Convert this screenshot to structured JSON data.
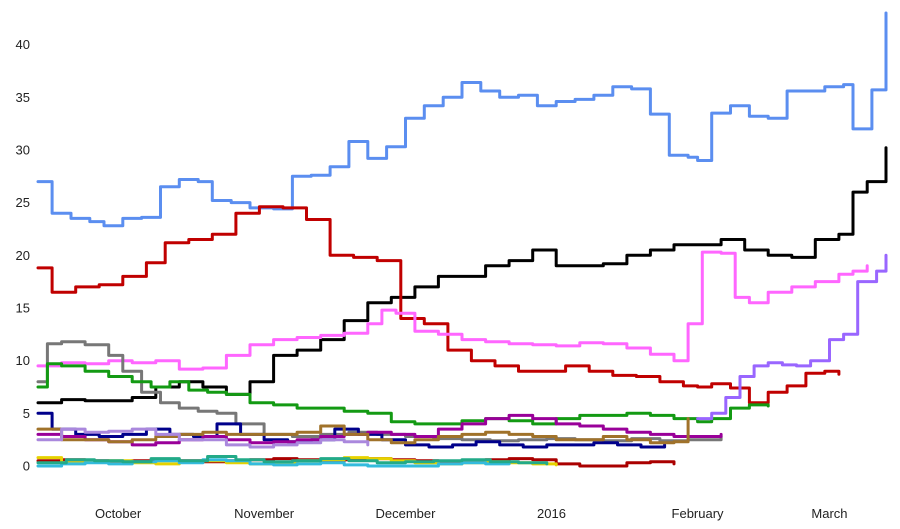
{
  "chart_data": {
    "type": "line",
    "title": "",
    "xlabel": "",
    "ylabel": "",
    "ylim": [
      0,
      43
    ],
    "yticks": [
      0,
      5,
      10,
      15,
      20,
      25,
      30,
      35,
      40
    ],
    "x_labels": [
      "October",
      "November",
      "December",
      "2016",
      "February",
      "March"
    ],
    "x_label_days": [
      17,
      48,
      78,
      109,
      140,
      168
    ],
    "x_range": [
      0,
      180
    ],
    "grid": false,
    "legend": "none",
    "series": [
      {
        "name": "blue",
        "color": "#5b8ef0",
        "x": [
          0,
          3,
          7,
          11,
          14,
          18,
          22,
          26,
          30,
          34,
          37,
          41,
          45,
          50,
          54,
          58,
          62,
          66,
          70,
          74,
          78,
          82,
          86,
          90,
          94,
          98,
          102,
          106,
          110,
          114,
          118,
          122,
          126,
          130,
          134,
          138,
          140,
          143,
          147,
          151,
          155,
          159,
          163,
          167,
          171,
          173,
          177,
          180,
          182
        ],
        "values": [
          27,
          24,
          23.5,
          23.2,
          22.8,
          23.5,
          23.6,
          26.5,
          27.2,
          27,
          25.2,
          25,
          24.5,
          24.4,
          27.5,
          27.6,
          28.4,
          30.8,
          29.2,
          30.3,
          33,
          34.2,
          35,
          36.4,
          35.6,
          35,
          35.2,
          34.2,
          34.6,
          34.8,
          35.2,
          36,
          35.8,
          33.4,
          29.5,
          29.3,
          29,
          33.5,
          34.2,
          33.2,
          33,
          35.6,
          35.6,
          36,
          36.2,
          32,
          35.7,
          41.5,
          43
        ]
      },
      {
        "name": "black",
        "color": "#000000",
        "x": [
          0,
          5,
          10,
          15,
          20,
          25,
          30,
          35,
          40,
          45,
          50,
          55,
          60,
          65,
          70,
          75,
          80,
          85,
          90,
          95,
          100,
          105,
          110,
          115,
          120,
          125,
          130,
          135,
          140,
          143,
          145,
          150,
          155,
          160,
          165,
          170,
          173,
          176,
          180,
          182
        ],
        "values": [
          6,
          6.3,
          6.2,
          6.2,
          6.5,
          7.5,
          8,
          7.5,
          6.8,
          8,
          10.5,
          11,
          12,
          13.8,
          15.5,
          16,
          17,
          18,
          18,
          19,
          19.5,
          20.5,
          19,
          19,
          19.2,
          20,
          20.5,
          21,
          21,
          21,
          21.5,
          20.5,
          20,
          19.8,
          21.5,
          22,
          26,
          27,
          29,
          30.2
        ]
      },
      {
        "name": "red",
        "color": "#c00000",
        "x": [
          0,
          3,
          8,
          13,
          18,
          23,
          27,
          32,
          37,
          42,
          47,
          52,
          57,
          62,
          67,
          72,
          77,
          82,
          87,
          92,
          97,
          102,
          107,
          112,
          117,
          122,
          127,
          132,
          137,
          140,
          143,
          147,
          151,
          155,
          159,
          163,
          167,
          170
        ],
        "values": [
          18.8,
          16.5,
          17,
          17.2,
          18,
          19.3,
          21.2,
          21.5,
          22,
          24,
          24.6,
          24.5,
          23.4,
          20,
          19.8,
          19.5,
          14,
          13.5,
          11,
          10,
          9.5,
          9,
          9,
          9.5,
          9,
          8.6,
          8.5,
          8,
          7.6,
          7.5,
          7.8,
          7.4,
          6,
          7,
          7.6,
          8.8,
          9,
          8.7
        ]
      },
      {
        "name": "pink",
        "color": "#ff66ff",
        "x": [
          0,
          5,
          10,
          15,
          20,
          25,
          30,
          35,
          40,
          45,
          50,
          55,
          60,
          65,
          70,
          73,
          76,
          80,
          85,
          90,
          95,
          100,
          105,
          110,
          115,
          120,
          125,
          130,
          135,
          138,
          141,
          145,
          148,
          151,
          155,
          160,
          165,
          170,
          173,
          176
        ],
        "values": [
          9.5,
          9.8,
          9.7,
          10,
          9.8,
          10,
          9.2,
          9.3,
          10.5,
          11.5,
          12,
          12.2,
          12.4,
          12.6,
          13.5,
          14.8,
          14.5,
          12.8,
          12.5,
          12,
          11.8,
          11.6,
          11.5,
          11.4,
          11.7,
          11.6,
          11.2,
          10.6,
          10,
          13.5,
          20.3,
          20.2,
          16,
          15.5,
          16.5,
          17,
          17.5,
          18.2,
          18.5,
          19
        ]
      },
      {
        "name": "gray",
        "color": "#777777",
        "x": [
          0,
          2,
          5,
          10,
          15,
          18,
          22,
          26,
          30,
          34,
          38,
          42,
          48,
          54,
          60,
          66,
          72,
          78,
          84,
          90,
          96,
          102,
          108,
          114,
          120,
          126,
          132,
          138,
          145
        ],
        "values": [
          8,
          11.6,
          11.8,
          11.5,
          10.5,
          9,
          7,
          6,
          5.5,
          5.2,
          5,
          4,
          3,
          2.8,
          3,
          3.2,
          3,
          2.8,
          2.6,
          2.5,
          2.4,
          2.5,
          2.6,
          2.5,
          2.4,
          2.6,
          2.4,
          2.5,
          2.8
        ]
      },
      {
        "name": "green",
        "color": "#139a13",
        "x": [
          0,
          2,
          5,
          10,
          15,
          20,
          24,
          28,
          32,
          36,
          40,
          45,
          50,
          55,
          60,
          65,
          70,
          75,
          80,
          85,
          90,
          95,
          100,
          105,
          110,
          115,
          120,
          125,
          130,
          135,
          140,
          143,
          147,
          151,
          155
        ],
        "values": [
          7.5,
          9.7,
          9.5,
          9,
          8.5,
          8,
          7.5,
          8,
          7.2,
          7,
          6.8,
          6,
          5.8,
          5.5,
          5.5,
          5.2,
          5,
          4.2,
          4,
          4,
          4.3,
          4.5,
          4.3,
          4,
          4.5,
          4.8,
          4.8,
          5,
          4.8,
          4.5,
          4.2,
          4.5,
          5.5,
          5.8,
          5.7
        ]
      },
      {
        "name": "purple",
        "color": "#9966ff",
        "x": [
          140,
          143,
          146,
          149,
          152,
          155,
          158,
          161,
          164,
          168,
          171,
          174,
          178,
          180,
          182
        ],
        "values": [
          4.5,
          5,
          6.5,
          8.5,
          9.5,
          9.8,
          9.6,
          9.5,
          10,
          12,
          12.5,
          17.5,
          18.5,
          20,
          19.2
        ]
      },
      {
        "name": "navy",
        "color": "#00008b",
        "x": [
          0,
          3,
          8,
          13,
          18,
          23,
          28,
          33,
          38,
          43,
          48,
          53,
          58,
          63,
          68,
          73,
          78,
          83,
          88,
          93,
          98,
          103,
          108,
          113,
          118,
          123,
          128,
          133
        ],
        "values": [
          5,
          3.5,
          3,
          2.8,
          3,
          3.5,
          3,
          2.8,
          4,
          3,
          2.5,
          2.3,
          2.5,
          3.5,
          3,
          2.5,
          2,
          1.8,
          2,
          2.3,
          2,
          1.8,
          2,
          2,
          2.2,
          2,
          1.8,
          2
        ]
      },
      {
        "name": "magenta",
        "color": "#990099",
        "x": [
          0,
          5,
          10,
          15,
          20,
          25,
          30,
          35,
          40,
          45,
          50,
          55,
          60,
          65,
          70,
          75,
          80,
          85,
          90,
          95,
          100,
          105,
          110,
          115,
          120,
          125,
          130,
          135,
          140,
          145
        ],
        "values": [
          3,
          2.8,
          2.5,
          2.3,
          2,
          2.2,
          2.5,
          2.8,
          2.5,
          2.2,
          2.3,
          2.5,
          2.8,
          3,
          3.2,
          3,
          2.8,
          3.5,
          4,
          4.5,
          4.8,
          4.5,
          4,
          3.8,
          3.5,
          3.2,
          3,
          2.8,
          2.8,
          3
        ]
      },
      {
        "name": "brown",
        "color": "#a0722a",
        "x": [
          0,
          5,
          10,
          15,
          20,
          25,
          30,
          35,
          40,
          45,
          50,
          55,
          60,
          65,
          70,
          75,
          80,
          85,
          90,
          95,
          100,
          105,
          110,
          115,
          120,
          125,
          130,
          135,
          138
        ],
        "values": [
          3.5,
          2.5,
          2.5,
          2.3,
          2.5,
          2.8,
          3,
          3.2,
          3,
          3,
          3,
          3.2,
          3.8,
          3,
          2.5,
          2.2,
          2.5,
          2.8,
          3,
          3.2,
          3,
          2.8,
          2.5,
          2.5,
          2.8,
          2.5,
          2.2,
          2.3,
          4.5
        ]
      },
      {
        "name": "lavender",
        "color": "#aa88dd",
        "x": [
          0,
          5,
          10,
          15,
          20,
          25,
          30,
          35,
          40,
          45,
          50,
          55,
          60,
          65,
          70
        ],
        "values": [
          2.5,
          3.5,
          3.2,
          3.3,
          3.5,
          3,
          2.5,
          2.5,
          2,
          1.8,
          2,
          2.2,
          2.5,
          2.3,
          2
        ]
      },
      {
        "name": "dark-red",
        "color": "#aa0000",
        "x": [
          0,
          5,
          10,
          15,
          20,
          25,
          30,
          35,
          40,
          45,
          50,
          55,
          60,
          65,
          70,
          75,
          80,
          85,
          90,
          95,
          100,
          105,
          110,
          115,
          120,
          125,
          130,
          135
        ],
        "values": [
          0.5,
          0.6,
          0.5,
          0.4,
          0.5,
          0.6,
          0.5,
          0.4,
          0.5,
          0.6,
          0.7,
          0.6,
          0.5,
          0.6,
          0.7,
          0.6,
          0.5,
          0.4,
          0.5,
          0.6,
          0.7,
          0.6,
          0.2,
          0,
          0,
          0.3,
          0.4,
          0.2
        ]
      },
      {
        "name": "yellow",
        "color": "#e6d200",
        "x": [
          0,
          5,
          10,
          15,
          20,
          25,
          30,
          35,
          40,
          45,
          50,
          55,
          60,
          65,
          70,
          75,
          80,
          85,
          90,
          95,
          100,
          105,
          110
        ],
        "values": [
          0.8,
          0.3,
          0.4,
          0.5,
          0.3,
          0.2,
          0.4,
          0.5,
          0.3,
          0.2,
          0.3,
          0.5,
          0.6,
          0.8,
          0.7,
          0.5,
          0.3,
          0.2,
          0.3,
          0.4,
          0.3,
          0.2,
          0.1
        ]
      },
      {
        "name": "cyan",
        "color": "#33bbdd",
        "x": [
          0,
          5,
          10,
          15,
          20,
          25,
          30,
          35,
          40,
          45,
          50,
          55,
          60,
          65,
          70,
          75,
          80,
          85,
          90,
          95,
          100
        ],
        "values": [
          0,
          0.2,
          0.3,
          0.2,
          0.4,
          0.5,
          0.3,
          0.6,
          0.5,
          0.2,
          0.1,
          0.2,
          0.3,
          0.1,
          0,
          0,
          0,
          0.2,
          0.3,
          0.2,
          0.3
        ]
      },
      {
        "name": "teal",
        "color": "#22aa88",
        "x": [
          0,
          6,
          12,
          18,
          24,
          30,
          36,
          42,
          48,
          54,
          60,
          66,
          72,
          78,
          84,
          90,
          96,
          102,
          108
        ],
        "values": [
          0.3,
          0.6,
          0.5,
          0.4,
          0.7,
          0.5,
          0.9,
          0.6,
          0.4,
          0.5,
          0.7,
          0.5,
          0.3,
          0.4,
          0.5,
          0.6,
          0.4,
          0.3,
          0.2
        ]
      }
    ]
  }
}
